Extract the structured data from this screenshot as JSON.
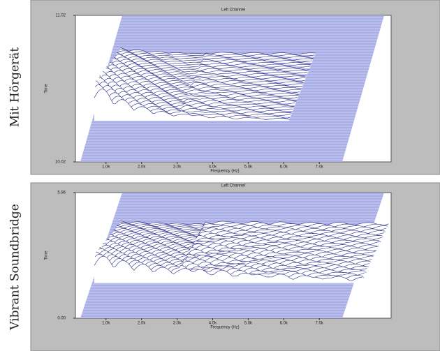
{
  "chart_data": [
    {
      "type": "waterfall",
      "row_label": "Mit Hörgerät",
      "title": "Left Channel",
      "ylabel": "Time",
      "xlabel": "Frequency (Hz)",
      "xlim": [
        140,
        9020
      ],
      "xticks": [
        {
          "value": 1000,
          "label": "1.0k"
        },
        {
          "value": 2000,
          "label": "2.0k"
        },
        {
          "value": 3000,
          "label": "3.0k"
        },
        {
          "value": 4000,
          "label": "4.0k"
        },
        {
          "value": 5000,
          "label": "5.0k"
        },
        {
          "value": 6000,
          "label": "6.0k"
        },
        {
          "value": 7000,
          "label": "7.0k"
        }
      ],
      "ylim": [
        10.02,
        11.02
      ],
      "yticks": [
        10.02,
        11.02
      ]
    },
    {
      "type": "waterfall",
      "row_label": "Vibrant Soundbridge",
      "title": "Left Channel",
      "ylabel": "Time",
      "xlabel": "Frequency (Hz)",
      "xlim": [
        140,
        9020
      ],
      "xticks": [
        {
          "value": 1000,
          "label": "1.0k"
        },
        {
          "value": 2000,
          "label": "2.0k"
        },
        {
          "value": 3000,
          "label": "3.0k"
        },
        {
          "value": 4000,
          "label": "4.0k"
        },
        {
          "value": 5000,
          "label": "5.0k"
        },
        {
          "value": 6000,
          "label": "6.0k"
        },
        {
          "value": 7000,
          "label": "7.0k"
        }
      ],
      "ylim": [
        0,
        5.96
      ],
      "yticks": [
        {
          "value": 0,
          "label": "0.00"
        },
        5.96
      ]
    }
  ]
}
